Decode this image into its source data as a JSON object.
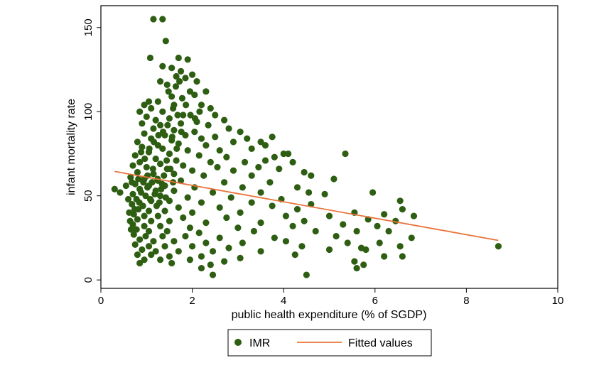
{
  "chart_data": {
    "type": "scatter",
    "title": "",
    "xlabel": "public health expenditure (% of SGDP)",
    "ylabel": "infant mortality rate",
    "xlim": [
      0,
      10
    ],
    "ylim": [
      -5,
      163
    ],
    "xticks": [
      0,
      2,
      4,
      6,
      8,
      10
    ],
    "yticks": [
      0,
      50,
      100,
      150
    ],
    "grid": false,
    "legend_position": "bottom-center",
    "colors": {
      "points": "#2e5e12",
      "fit_line": "#e8743b",
      "frame": "#000000"
    },
    "series": [
      {
        "name": "IMR",
        "kind": "scatter",
        "points": [
          [
            1.15,
            155
          ],
          [
            1.35,
            155
          ],
          [
            1.42,
            142
          ],
          [
            1.08,
            132
          ],
          [
            1.7,
            132
          ],
          [
            1.9,
            131
          ],
          [
            1.35,
            127
          ],
          [
            1.55,
            126
          ],
          [
            1.75,
            124
          ],
          [
            2.0,
            122
          ],
          [
            1.65,
            121
          ],
          [
            2.1,
            118
          ],
          [
            1.3,
            118
          ],
          [
            1.85,
            120
          ],
          [
            1.45,
            116
          ],
          [
            1.95,
            112
          ],
          [
            2.3,
            112
          ],
          [
            2.05,
            110
          ],
          [
            1.55,
            109
          ],
          [
            1.05,
            106
          ],
          [
            1.25,
            106
          ],
          [
            0.95,
            104
          ],
          [
            1.1,
            102
          ],
          [
            1.6,
            104
          ],
          [
            2.2,
            104
          ],
          [
            2.4,
            102
          ],
          [
            0.85,
            100
          ],
          [
            1.35,
            100
          ],
          [
            1.8,
            98
          ],
          [
            2.5,
            98
          ],
          [
            1.0,
            97
          ],
          [
            1.2,
            95
          ],
          [
            1.5,
            96
          ],
          [
            2.1,
            94
          ],
          [
            2.7,
            95
          ],
          [
            0.9,
            93
          ],
          [
            1.3,
            92
          ],
          [
            1.75,
            93
          ],
          [
            2.35,
            92
          ],
          [
            1.15,
            90
          ],
          [
            1.6,
            89
          ],
          [
            2.05,
            88
          ],
          [
            2.8,
            90
          ],
          [
            3.05,
            88
          ],
          [
            0.95,
            87
          ],
          [
            1.4,
            86
          ],
          [
            1.85,
            86
          ],
          [
            2.5,
            85
          ],
          [
            3.2,
            84
          ],
          [
            3.75,
            85
          ],
          [
            1.1,
            84
          ],
          [
            1.55,
            83
          ],
          [
            2.2,
            84
          ],
          [
            2.9,
            82
          ],
          [
            3.5,
            82
          ],
          [
            0.8,
            82
          ],
          [
            1.25,
            80
          ],
          [
            1.7,
            81
          ],
          [
            2.3,
            80
          ],
          [
            3.6,
            80
          ],
          [
            0.9,
            79
          ],
          [
            1.35,
            78
          ],
          [
            1.9,
            77
          ],
          [
            2.6,
            77
          ],
          [
            3.3,
            78
          ],
          [
            4.0,
            75
          ],
          [
            4.1,
            75
          ],
          [
            1.05,
            76
          ],
          [
            1.5,
            75
          ],
          [
            2.15,
            74
          ],
          [
            2.75,
            73
          ],
          [
            3.8,
            73
          ],
          [
            5.35,
            75
          ],
          [
            0.75,
            74
          ],
          [
            1.2,
            72
          ],
          [
            1.65,
            71
          ],
          [
            2.4,
            70
          ],
          [
            3.15,
            70
          ],
          [
            3.6,
            71
          ],
          [
            4.2,
            70
          ],
          [
            0.85,
            70
          ],
          [
            1.3,
            69
          ],
          [
            1.8,
            68
          ],
          [
            2.55,
            67
          ],
          [
            3.45,
            67
          ],
          [
            0.7,
            68
          ],
          [
            1.0,
            67
          ],
          [
            1.45,
            66
          ],
          [
            2.0,
            65
          ],
          [
            2.9,
            65
          ],
          [
            3.9,
            66
          ],
          [
            4.45,
            64
          ],
          [
            0.8,
            64
          ],
          [
            1.15,
            63
          ],
          [
            1.6,
            63
          ],
          [
            2.25,
            62
          ],
          [
            3.3,
            62
          ],
          [
            4.6,
            62
          ],
          [
            5.1,
            60
          ],
          [
            0.65,
            61
          ],
          [
            0.95,
            60
          ],
          [
            1.25,
            59
          ],
          [
            1.75,
            59
          ],
          [
            2.7,
            58
          ],
          [
            3.7,
            58
          ],
          [
            0.75,
            57
          ],
          [
            1.05,
            56
          ],
          [
            1.4,
            56
          ],
          [
            2.05,
            55
          ],
          [
            3.1,
            55
          ],
          [
            4.3,
            55
          ],
          [
            0.85,
            54
          ],
          [
            1.2,
            53
          ],
          [
            1.6,
            53
          ],
          [
            2.45,
            52
          ],
          [
            3.5,
            52
          ],
          [
            4.55,
            52
          ],
          [
            4.9,
            51
          ],
          [
            5.95,
            52
          ],
          [
            0.7,
            51
          ],
          [
            0.98,
            50
          ],
          [
            1.3,
            50
          ],
          [
            1.9,
            49
          ],
          [
            2.85,
            49
          ],
          [
            3.95,
            48
          ],
          [
            0.78,
            48
          ],
          [
            1.1,
            47
          ],
          [
            1.5,
            47
          ],
          [
            2.2,
            46
          ],
          [
            3.3,
            46
          ],
          [
            0.68,
            45
          ],
          [
            0.92,
            44
          ],
          [
            1.22,
            44
          ],
          [
            1.7,
            43
          ],
          [
            2.6,
            43
          ],
          [
            3.75,
            44
          ],
          [
            4.6,
            45
          ],
          [
            6.55,
            47
          ],
          [
            0.82,
            42
          ],
          [
            1.05,
            41
          ],
          [
            1.4,
            41
          ],
          [
            2.0,
            40
          ],
          [
            3.05,
            40
          ],
          [
            4.3,
            42
          ],
          [
            5.55,
            40
          ],
          [
            6.6,
            42
          ],
          [
            0.72,
            39
          ],
          [
            0.95,
            38
          ],
          [
            1.25,
            38
          ],
          [
            1.8,
            37
          ],
          [
            2.75,
            37
          ],
          [
            4.05,
            38
          ],
          [
            5.0,
            38
          ],
          [
            6.2,
            39
          ],
          [
            6.85,
            38
          ],
          [
            0.8,
            36
          ],
          [
            1.1,
            35
          ],
          [
            1.5,
            35
          ],
          [
            2.3,
            34
          ],
          [
            3.5,
            34
          ],
          [
            4.45,
            35
          ],
          [
            5.85,
            36
          ],
          [
            6.45,
            35
          ],
          [
            0.7,
            33
          ],
          [
            0.95,
            32
          ],
          [
            1.3,
            32
          ],
          [
            1.95,
            31
          ],
          [
            3.0,
            31
          ],
          [
            4.2,
            32
          ],
          [
            5.3,
            33
          ],
          [
            6.05,
            32
          ],
          [
            0.78,
            30
          ],
          [
            1.05,
            29
          ],
          [
            1.45,
            29
          ],
          [
            2.15,
            28
          ],
          [
            3.35,
            29
          ],
          [
            4.7,
            29
          ],
          [
            5.6,
            29
          ],
          [
            6.3,
            29
          ],
          [
            0.72,
            27
          ],
          [
            0.98,
            26
          ],
          [
            1.35,
            26
          ],
          [
            1.85,
            26
          ],
          [
            2.6,
            25
          ],
          [
            3.8,
            25
          ],
          [
            5.15,
            26
          ],
          [
            6.8,
            25
          ],
          [
            0.85,
            24
          ],
          [
            1.15,
            23
          ],
          [
            1.6,
            23
          ],
          [
            2.3,
            22
          ],
          [
            3.1,
            22
          ],
          [
            4.05,
            23
          ],
          [
            5.4,
            22
          ],
          [
            6.1,
            22
          ],
          [
            0.75,
            21
          ],
          [
            1.05,
            20
          ],
          [
            1.4,
            20
          ],
          [
            2.0,
            20
          ],
          [
            2.8,
            19
          ],
          [
            4.4,
            20
          ],
          [
            5.7,
            19
          ],
          [
            6.55,
            20
          ],
          [
            8.7,
            20
          ],
          [
            0.9,
            18
          ],
          [
            1.2,
            17
          ],
          [
            1.7,
            17
          ],
          [
            2.45,
            17
          ],
          [
            3.5,
            17
          ],
          [
            5.0,
            18
          ],
          [
            5.8,
            18
          ],
          [
            0.8,
            15
          ],
          [
            1.1,
            15
          ],
          [
            1.5,
            14
          ],
          [
            2.2,
            14
          ],
          [
            3.05,
            13
          ],
          [
            4.25,
            15
          ],
          [
            6.2,
            14
          ],
          [
            6.6,
            14
          ],
          [
            0.95,
            12
          ],
          [
            1.3,
            12
          ],
          [
            1.95,
            12
          ],
          [
            2.7,
            11
          ],
          [
            5.55,
            11
          ],
          [
            0.85,
            10
          ],
          [
            1.55,
            10
          ],
          [
            2.4,
            9
          ],
          [
            5.75,
            9
          ],
          [
            2.2,
            7
          ],
          [
            5.6,
            7
          ],
          [
            2.45,
            3
          ],
          [
            4.5,
            3
          ],
          [
            0.3,
            54
          ],
          [
            0.42,
            52
          ],
          [
            0.55,
            56
          ],
          [
            0.6,
            48
          ],
          [
            0.62,
            40
          ],
          [
            0.64,
            35
          ],
          [
            0.66,
            30
          ],
          [
            0.68,
            58
          ],
          [
            0.82,
            60
          ],
          [
            0.88,
            52
          ],
          [
            1.02,
            55
          ],
          [
            1.08,
            48
          ],
          [
            1.12,
            58
          ],
          [
            1.18,
            51
          ],
          [
            1.28,
            46
          ],
          [
            1.32,
            54
          ],
          [
            1.38,
            62
          ],
          [
            1.42,
            49
          ],
          [
            0.74,
            42
          ],
          [
            0.84,
            46
          ],
          [
            0.93,
            58
          ],
          [
            1.02,
            62
          ],
          [
            1.14,
            66
          ],
          [
            1.24,
            60
          ],
          [
            1.34,
            57
          ],
          [
            1.44,
            71
          ],
          [
            1.52,
            66
          ],
          [
            1.58,
            58
          ],
          [
            0.88,
            76
          ],
          [
            0.96,
            72
          ],
          [
            1.06,
            78
          ],
          [
            1.16,
            82
          ],
          [
            1.26,
            86
          ],
          [
            1.36,
            88
          ],
          [
            1.46,
            92
          ],
          [
            1.56,
            85
          ],
          [
            1.66,
            78
          ],
          [
            1.76,
            88
          ],
          [
            1.86,
            104
          ],
          [
            1.96,
            98
          ],
          [
            2.06,
            96
          ],
          [
            2.16,
            100
          ],
          [
            1.48,
            112
          ],
          [
            1.64,
            115
          ],
          [
            1.72,
            118
          ],
          [
            1.58,
            102
          ],
          [
            1.68,
            98
          ],
          [
            1.78,
            108
          ]
        ]
      },
      {
        "name": "Fitted values",
        "kind": "line",
        "x": [
          0.3,
          8.7
        ],
        "y": [
          64.5,
          23.5
        ]
      }
    ]
  }
}
